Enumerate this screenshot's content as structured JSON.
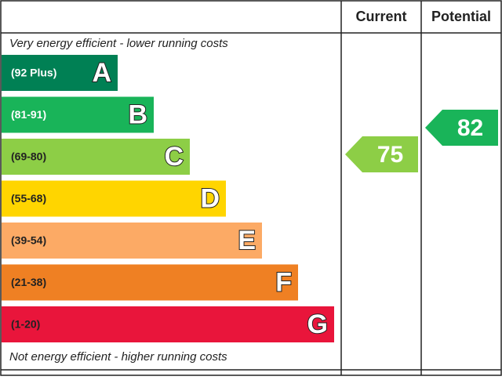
{
  "chart_data": {
    "type": "epc",
    "headers": [
      "Current",
      "Potential"
    ],
    "top_note": "Very energy efficient - lower running costs",
    "bottom_note": "Not energy efficient - higher running costs",
    "bands": [
      {
        "range": "(92 Plus)",
        "letter": "A",
        "color": "#008054",
        "label_color": "#ffffff"
      },
      {
        "range": "(81-91)",
        "letter": "B",
        "color": "#19b459",
        "label_color": "#ffffff"
      },
      {
        "range": "(69-80)",
        "letter": "C",
        "color": "#8dce46",
        "label_color": "#222222"
      },
      {
        "range": "(55-68)",
        "letter": "D",
        "color": "#ffd500",
        "label_color": "#222222"
      },
      {
        "range": "(39-54)",
        "letter": "E",
        "color": "#fcaa65",
        "label_color": "#222222"
      },
      {
        "range": "(21-38)",
        "letter": "F",
        "color": "#ef8023",
        "label_color": "#222222"
      },
      {
        "range": "(1-20)",
        "letter": "G",
        "color": "#e9153b",
        "label_color": "#222222"
      }
    ],
    "ratings": [
      {
        "value": 75,
        "color": "#8dce46"
      },
      {
        "value": 82,
        "color": "#19b459"
      }
    ]
  }
}
